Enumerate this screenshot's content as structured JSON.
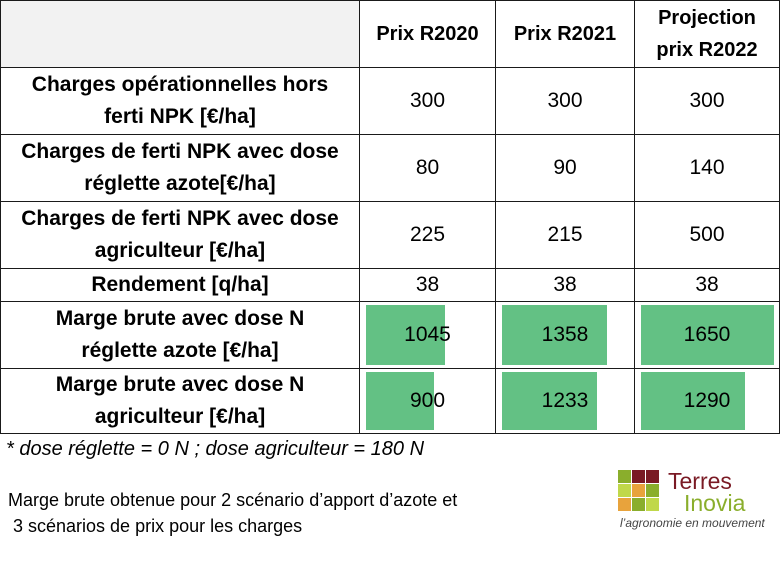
{
  "table": {
    "columns": [
      "Prix R2020",
      "Prix R2021",
      "Projection\nprix R2022"
    ],
    "rows": [
      {
        "label": "Charges opérationnelles hors\nferti NPK [€/ha]",
        "values": [
          "300",
          "300",
          "300"
        ]
      },
      {
        "label": "Charges de ferti NPK avec dose\nréglette azote[€/ha]",
        "values": [
          "80",
          "90",
          "140"
        ]
      },
      {
        "label": "Charges de ferti NPK avec dose\nagriculteur [€/ha]",
        "values": [
          "225",
          "215",
          "500"
        ]
      },
      {
        "label": "Rendement [q/ha]",
        "values": [
          "38",
          "38",
          "38"
        ]
      },
      {
        "label": "Marge brute avec dose N\nréglette azote [€/ha]",
        "values": [
          "1045",
          "1358",
          "1650"
        ],
        "bars": [
          1045,
          1358,
          1650
        ]
      },
      {
        "label": "Marge brute avec dose N\nagriculteur [€/ha]",
        "values": [
          "900",
          "1233",
          "1290"
        ],
        "bars": [
          900,
          1233,
          1290
        ]
      }
    ],
    "bar_color": "#63c184",
    "bar_scale_max": 1650
  },
  "footnote": "* dose réglette  = 0 N ; dose agriculteur = 180 N",
  "caption": "Marge brute obtenue pour 2 scénario d’apport d’azote et\n 3 scénarios de prix pour les charges",
  "logo": {
    "name_line1": "Terres",
    "name_line2": "Inovia",
    "tagline": "l’agronomie en mouvement",
    "colors": [
      "#7a1a24",
      "#8aae2c",
      "#e8a33c",
      "#c0d84a"
    ]
  }
}
